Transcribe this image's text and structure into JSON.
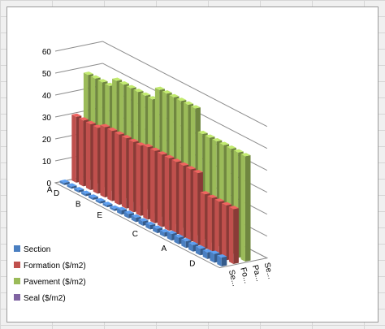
{
  "chart_data": {
    "type": "bar",
    "categories": [
      "A",
      "D",
      "",
      "",
      "B",
      "",
      "",
      "E",
      "",
      "",
      "",
      "",
      "C",
      "",
      "",
      "",
      "A",
      "",
      "",
      "",
      "D",
      "",
      ""
    ],
    "series": [
      {
        "name": "Section",
        "color": "#4a7fc1",
        "values": [
          1,
          1,
          1,
          1,
          1,
          1,
          1,
          1,
          2,
          2,
          2,
          2,
          2,
          2,
          2,
          3,
          3,
          3,
          3,
          3,
          3,
          4,
          4
        ]
      },
      {
        "name": "Formation ($/m2)",
        "color": "#c0504d",
        "values": [
          30,
          30,
          30,
          30,
          32,
          32,
          32,
          32,
          32,
          32,
          33,
          33,
          33,
          33,
          33,
          33,
          33,
          33,
          25,
          25,
          25,
          25,
          25
        ]
      },
      {
        "name": "Pavement ($/m2)",
        "color": "#9bbb59",
        "values": [
          48,
          48,
          48,
          48,
          52,
          52,
          52,
          52,
          52,
          52,
          58,
          58,
          58,
          58,
          58,
          58,
          48,
          48,
          48,
          48,
          48,
          48,
          48
        ]
      },
      {
        "name": "Seal ($/m2)",
        "color": "#8064a2",
        "values": [
          0,
          0,
          0,
          0,
          0,
          0,
          0,
          0,
          0,
          0,
          0,
          0,
          0,
          0,
          0,
          0,
          0,
          0,
          0,
          0,
          0,
          0,
          0
        ]
      }
    ],
    "depth_categories": [
      "Se...",
      "Fo...",
      "Pa...",
      "Se..."
    ],
    "y_ticks": [
      "0",
      "10",
      "20",
      "30",
      "40",
      "50",
      "60"
    ],
    "ylim": [
      0,
      60
    ],
    "grid": true,
    "legend_position": "left-bottom"
  }
}
